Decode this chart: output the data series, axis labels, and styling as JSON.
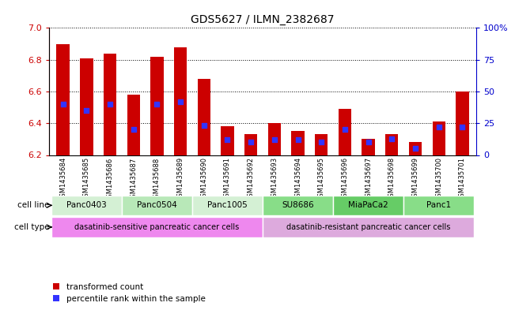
{
  "title": "GDS5627 / ILMN_2382687",
  "samples": [
    "GSM1435684",
    "GSM1435685",
    "GSM1435686",
    "GSM1435687",
    "GSM1435688",
    "GSM1435689",
    "GSM1435690",
    "GSM1435691",
    "GSM1435692",
    "GSM1435693",
    "GSM1435694",
    "GSM1435695",
    "GSM1435696",
    "GSM1435697",
    "GSM1435698",
    "GSM1435699",
    "GSM1435700",
    "GSM1435701"
  ],
  "transformed_count": [
    6.9,
    6.81,
    6.84,
    6.58,
    6.82,
    6.88,
    6.68,
    6.38,
    6.33,
    6.4,
    6.35,
    6.33,
    6.49,
    6.3,
    6.33,
    6.28,
    6.41,
    6.6
  ],
  "percentile_rank": [
    40,
    35,
    40,
    20,
    40,
    42,
    23,
    12,
    10,
    12,
    12,
    10,
    20,
    10,
    13,
    5,
    22,
    22
  ],
  "ylim_left": [
    6.2,
    7.0
  ],
  "ylim_right": [
    0,
    100
  ],
  "yticks_left": [
    6.2,
    6.4,
    6.6,
    6.8,
    7.0
  ],
  "yticks_right": [
    0,
    25,
    50,
    75,
    100
  ],
  "ytick_labels_right": [
    "0",
    "25",
    "50",
    "75",
    "100%"
  ],
  "bar_color": "#cc0000",
  "percentile_color": "#3333ff",
  "bar_width": 0.55,
  "cell_lines": [
    {
      "label": "Panc0403",
      "start": 0,
      "end": 3,
      "color": "#d4f0d4"
    },
    {
      "label": "Panc0504",
      "start": 3,
      "end": 6,
      "color": "#b8e8b8"
    },
    {
      "label": "Panc1005",
      "start": 6,
      "end": 9,
      "color": "#d4f0d4"
    },
    {
      "label": "SU8686",
      "start": 9,
      "end": 12,
      "color": "#88dd88"
    },
    {
      "label": "MiaPaCa2",
      "start": 12,
      "end": 15,
      "color": "#66cc66"
    },
    {
      "label": "Panc1",
      "start": 15,
      "end": 18,
      "color": "#88dd88"
    }
  ],
  "cell_type_sensitive": {
    "label": "dasatinib-sensitive pancreatic cancer cells",
    "start": 0,
    "end": 9,
    "color": "#ee88ee"
  },
  "cell_type_resistant": {
    "label": "dasatinib-resistant pancreatic cancer cells",
    "start": 9,
    "end": 18,
    "color": "#ddaadd"
  },
  "cell_line_row_color": "#cccccc",
  "legend_red": "transformed count",
  "legend_blue": "percentile rank within the sample",
  "bg_color": "#ffffff",
  "axis_left_color": "#cc0000",
  "axis_right_color": "#0000cc"
}
